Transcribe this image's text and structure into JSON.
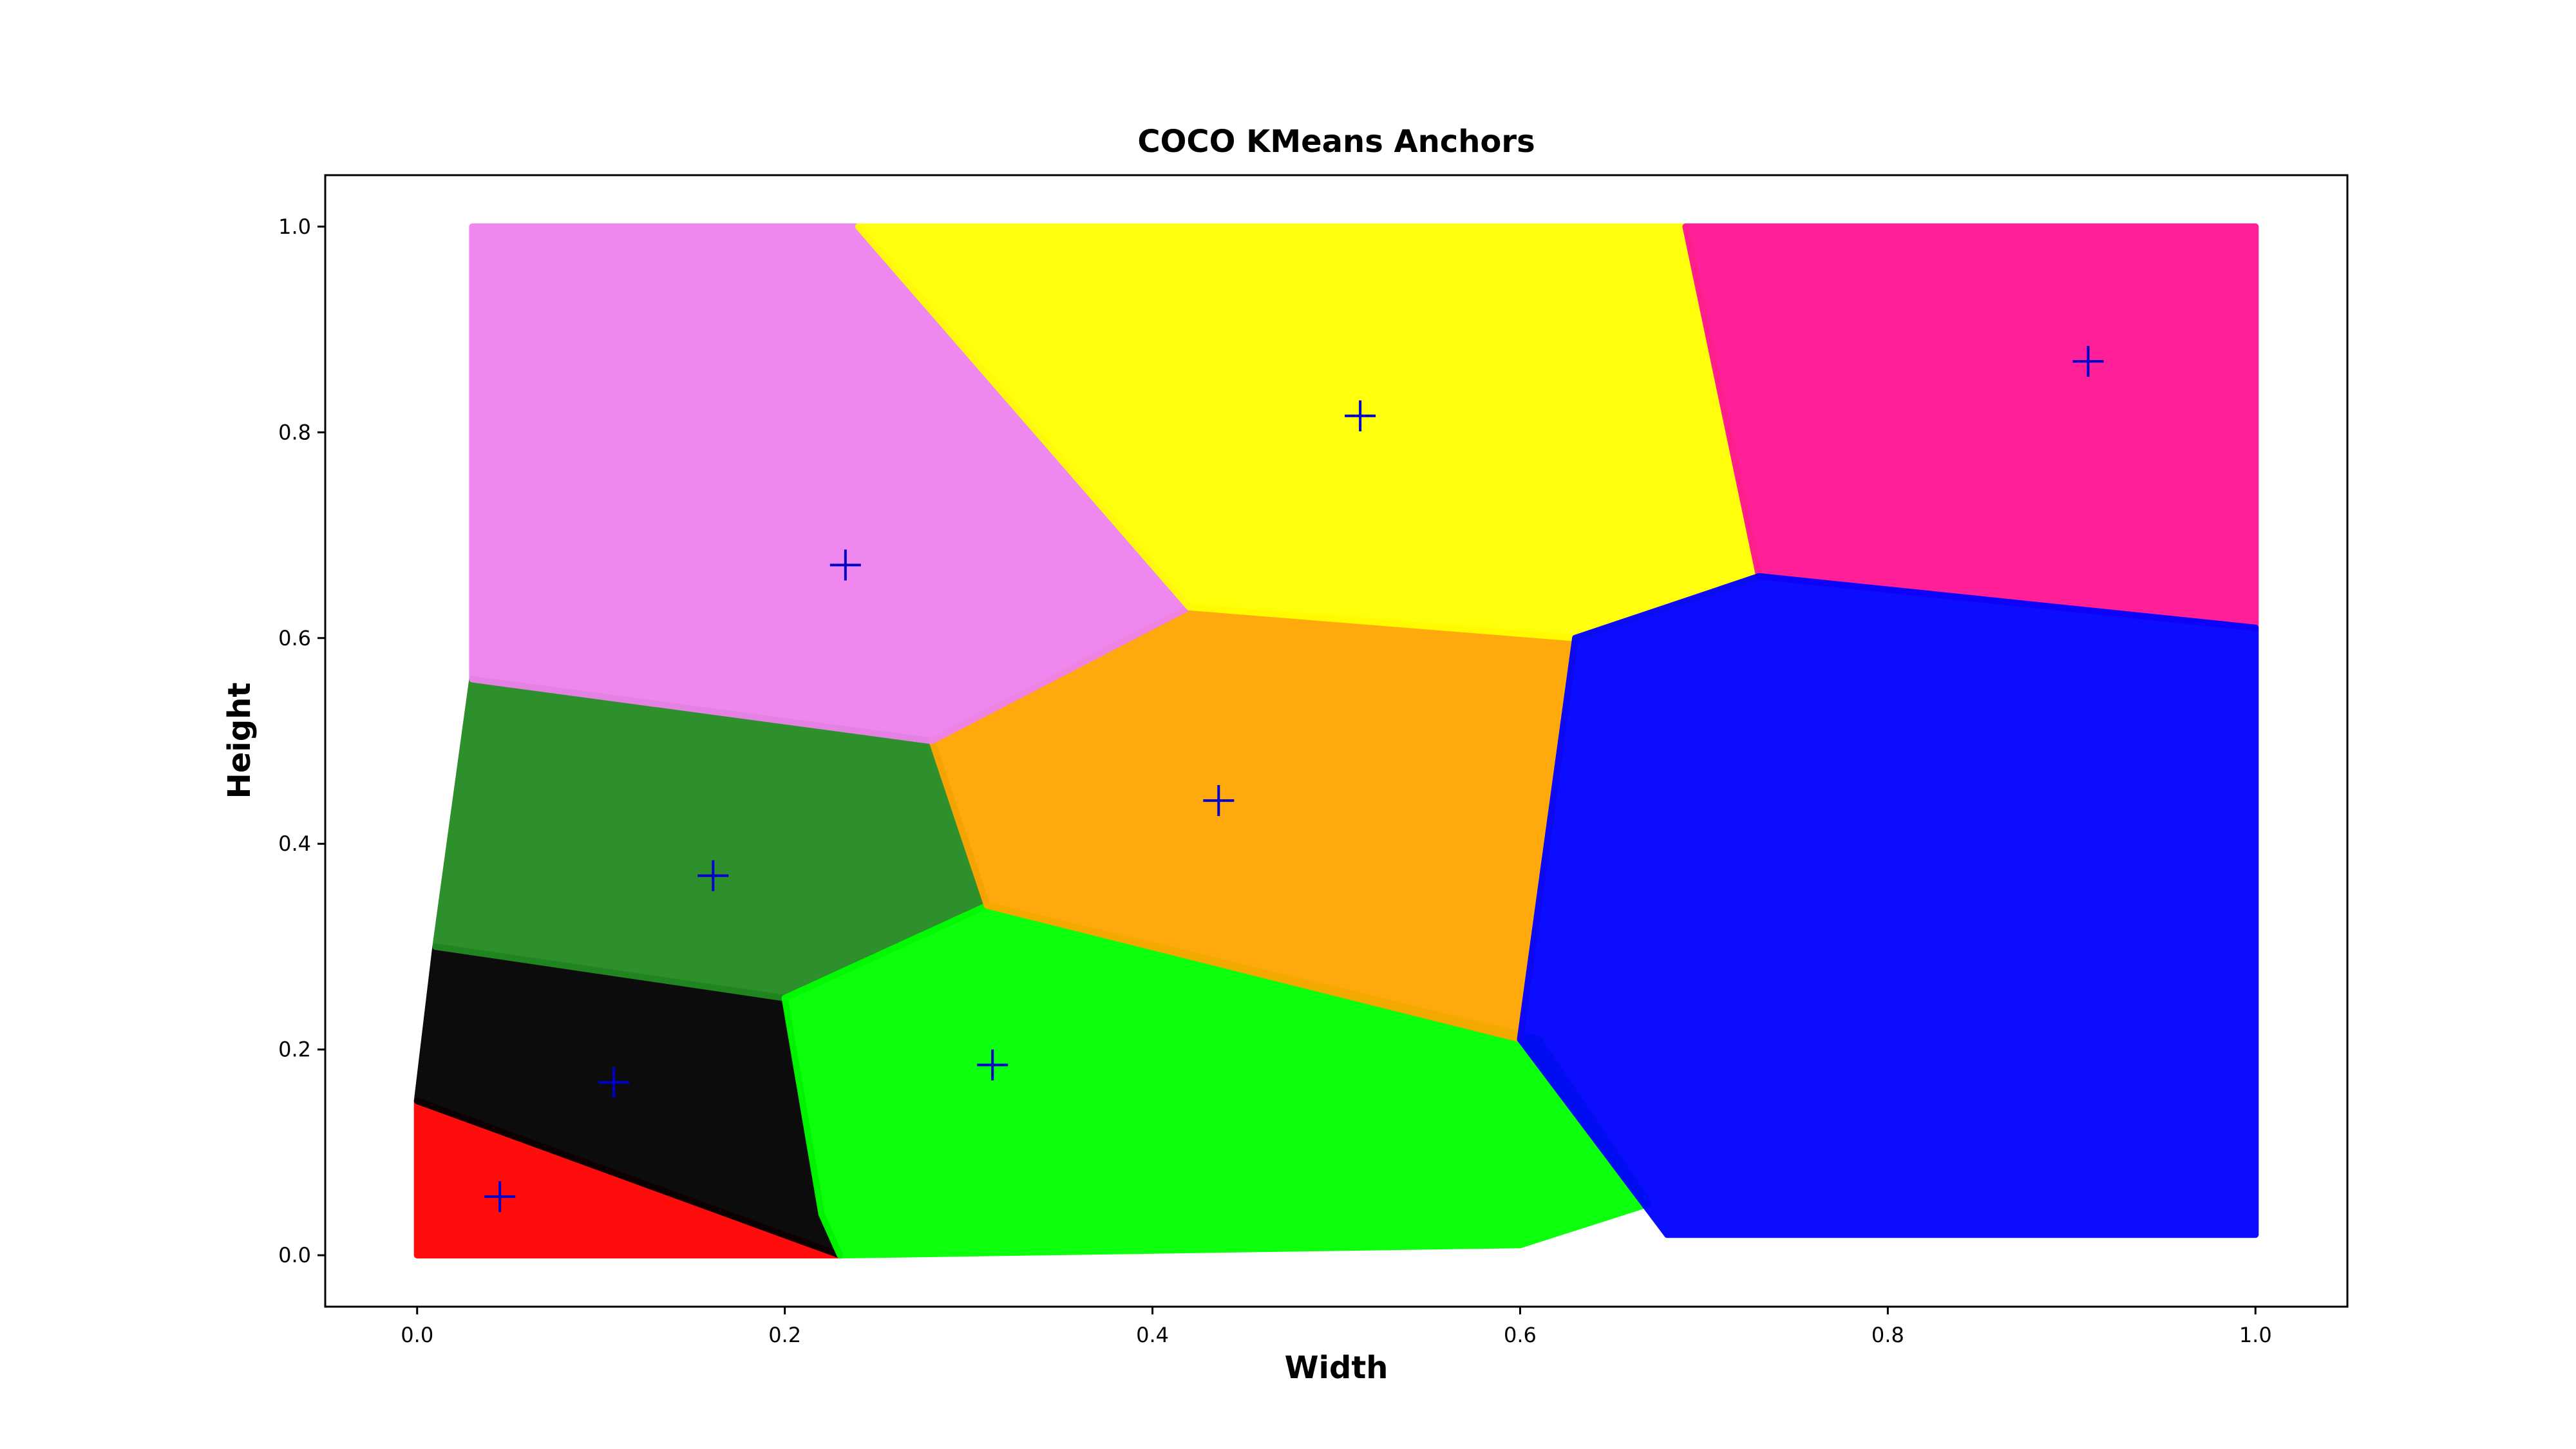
{
  "chart_data": {
    "type": "scatter",
    "title": "COCO KMeans Anchors",
    "xlabel": "Width",
    "ylabel": "Height",
    "xlim": [
      -0.05,
      1.05
    ],
    "ylim": [
      -0.05,
      1.05
    ],
    "xticks": [
      0.0,
      0.2,
      0.4,
      0.6,
      0.8,
      1.0
    ],
    "yticks": [
      0.0,
      0.2,
      0.4,
      0.6,
      0.8,
      1.0
    ],
    "xtick_labels": [
      "0.0",
      "0.2",
      "0.4",
      "0.6",
      "0.8",
      "1.0"
    ],
    "ytick_labels": [
      "0.0",
      "0.2",
      "0.4",
      "0.6",
      "0.8",
      "1.0"
    ],
    "grid": false,
    "clusters": [
      {
        "color": "#ff0000",
        "region": [
          [
            0.0,
            0.0
          ],
          [
            0.0,
            0.15
          ],
          [
            0.23,
            0.0
          ]
        ]
      },
      {
        "color": "#000000",
        "region": [
          [
            0.0,
            0.15
          ],
          [
            0.01,
            0.3
          ],
          [
            0.2,
            0.25
          ],
          [
            0.22,
            0.04
          ],
          [
            0.23,
            0.0
          ]
        ]
      },
      {
        "color": "#228b22",
        "region": [
          [
            0.01,
            0.3
          ],
          [
            0.03,
            0.56
          ],
          [
            0.28,
            0.5
          ],
          [
            0.31,
            0.34
          ],
          [
            0.2,
            0.25
          ]
        ]
      },
      {
        "color": "#00ff00",
        "region": [
          [
            0.2,
            0.25
          ],
          [
            0.31,
            0.34
          ],
          [
            0.61,
            0.21
          ],
          [
            0.67,
            0.05
          ],
          [
            0.6,
            0.01
          ],
          [
            0.23,
            0.0
          ],
          [
            0.22,
            0.04
          ]
        ]
      },
      {
        "color": "#ffa500",
        "region": [
          [
            0.28,
            0.5
          ],
          [
            0.42,
            0.63
          ],
          [
            0.63,
            0.6
          ],
          [
            0.6,
            0.21
          ],
          [
            0.31,
            0.34
          ]
        ]
      },
      {
        "color": "#ee82ee",
        "region": [
          [
            0.03,
            0.56
          ],
          [
            0.03,
            1.0
          ],
          [
            0.24,
            1.0
          ],
          [
            0.42,
            0.63
          ],
          [
            0.28,
            0.5
          ]
        ]
      },
      {
        "color": "#ffff00",
        "region": [
          [
            0.24,
            1.0
          ],
          [
            0.69,
            1.0
          ],
          [
            0.73,
            0.66
          ],
          [
            0.63,
            0.6
          ],
          [
            0.42,
            0.63
          ]
        ]
      },
      {
        "color": "#ff1493",
        "region": [
          [
            0.69,
            1.0
          ],
          [
            1.0,
            1.0
          ],
          [
            1.0,
            0.61
          ],
          [
            0.73,
            0.66
          ]
        ]
      },
      {
        "color": "#0000ff",
        "region": [
          [
            0.73,
            0.66
          ],
          [
            1.0,
            0.61
          ],
          [
            1.0,
            0.02
          ],
          [
            0.68,
            0.02
          ],
          [
            0.6,
            0.21
          ],
          [
            0.63,
            0.6
          ]
        ]
      }
    ],
    "anchors": {
      "color": "#0000cc",
      "marker": "+",
      "points": [
        [
          0.045,
          0.057
        ],
        [
          0.107,
          0.168
        ],
        [
          0.161,
          0.369
        ],
        [
          0.313,
          0.185
        ],
        [
          0.233,
          0.671
        ],
        [
          0.436,
          0.442
        ],
        [
          0.513,
          0.816
        ],
        [
          0.909,
          0.869
        ]
      ]
    }
  }
}
